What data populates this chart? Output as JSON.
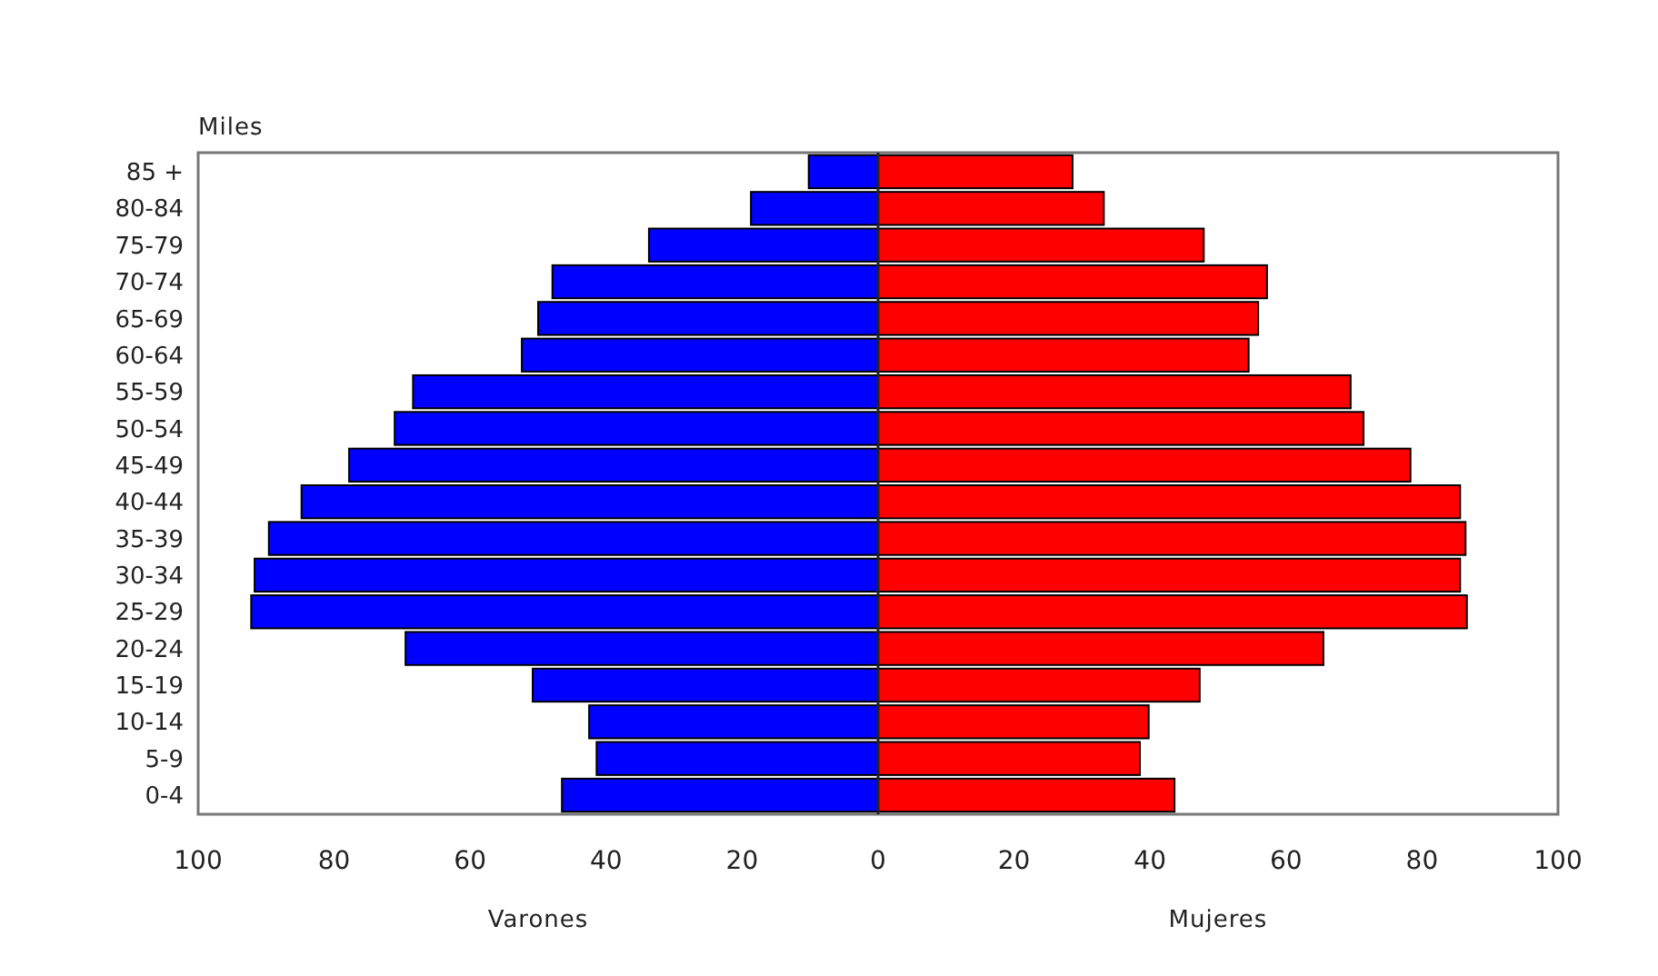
{
  "chart_data": {
    "type": "bar",
    "orientation": "horizontal",
    "stacked": true,
    "annotations": [
      "Miles",
      "Varones",
      "Mujeres"
    ],
    "categories": [
      "85 +",
      "80-84",
      "75-79",
      "70-74",
      "65-69",
      "60-64",
      "55-59",
      "50-54",
      "45-49",
      "40-44",
      "35-39",
      "30-34",
      "25-29",
      "20-24",
      "15-19",
      "10-14",
      "5-9",
      "0-4"
    ],
    "series": [
      {
        "color": "#0000ff",
        "values": [
          -10.2,
          -18.7,
          -33.7,
          -47.9,
          -50,
          -52.4,
          -68.4,
          -71.1,
          -77.8,
          -84.8,
          -89.6,
          -91.7,
          -92.2,
          -69.5,
          -50.8,
          -42.5,
          -41.4,
          -46.5
        ]
      },
      {
        "color": "#ff0000",
        "values": [
          28.6,
          33.2,
          47.9,
          57.2,
          55.9,
          54.5,
          69.5,
          71.4,
          78.3,
          85.6,
          86.4,
          85.6,
          86.6,
          65.5,
          47.3,
          39.8,
          38.5,
          43.6
        ]
      }
    ],
    "xlim": [
      -100,
      100
    ],
    "xticks": [
      {
        "value": -100,
        "label": "100"
      },
      {
        "value": -80,
        "label": "80"
      },
      {
        "value": -60,
        "label": "60"
      },
      {
        "value": -40,
        "label": "40"
      },
      {
        "value": -20,
        "label": "20"
      },
      0,
      20,
      40,
      60,
      80,
      100
    ]
  }
}
